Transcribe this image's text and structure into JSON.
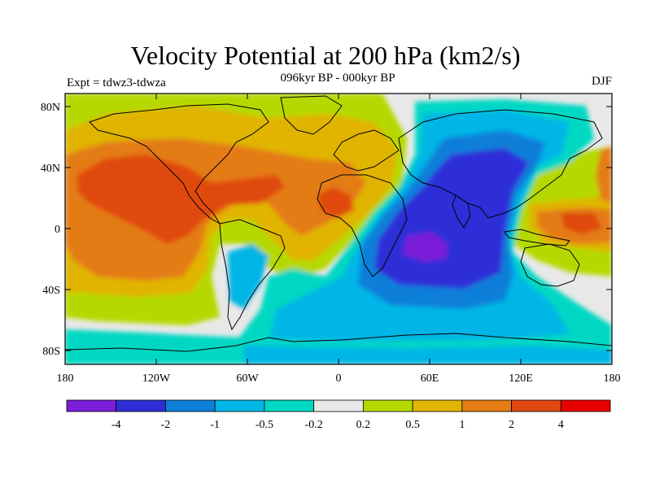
{
  "title": "Velocity Potential at 200 hPa (km2/s)",
  "subtitle": "096kyr BP - 000kyr BP",
  "experiment": "Expt = tdwz3-tdwza",
  "season": "DJF",
  "lat_ticks": [
    "80N",
    "40N",
    "0",
    "40S",
    "80S"
  ],
  "lon_ticks": [
    "180",
    "120W",
    "60W",
    "0",
    "60E",
    "120E",
    "180"
  ],
  "colorbar": {
    "colors": [
      "#7a1fd8",
      "#2e2ed8",
      "#0d7fd9",
      "#00b6e6",
      "#00d8c3",
      "#e8e8e8",
      "#b5d900",
      "#e0b400",
      "#e47c12",
      "#e04a10",
      "#e80000"
    ],
    "labels": [
      "-4",
      "-2",
      "-1",
      "-0.5",
      "-0.2",
      "0.2",
      "0.5",
      "1",
      "2",
      "4"
    ]
  }
}
